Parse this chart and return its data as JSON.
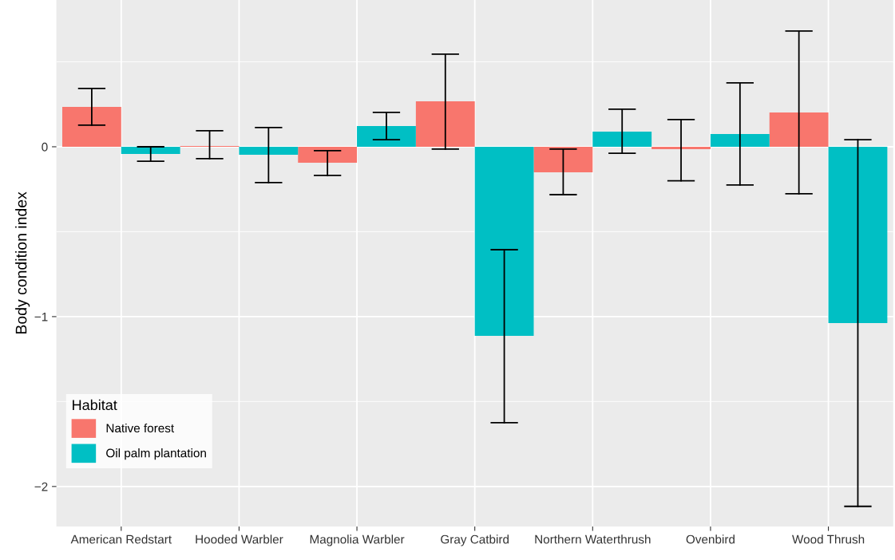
{
  "chart_data": {
    "type": "bar",
    "ylabel": "Body condition index",
    "categories": [
      "American Redstart",
      "Hooded Warbler",
      "Magnolia Warbler",
      "Gray Catbird",
      "Northern Waterthrush",
      "Ovenbird",
      "Wood Thrush"
    ],
    "series": [
      {
        "name": "Native forest",
        "color": "#f8766d",
        "values": [
          0.235,
          0.005,
          -0.094,
          0.268,
          -0.15,
          -0.014,
          0.202
        ],
        "errors": [
          [
            0.127,
            0.343
          ],
          [
            -0.07,
            0.094
          ],
          [
            -0.169,
            -0.023
          ],
          [
            -0.014,
            0.545
          ],
          [
            -0.282,
            -0.014
          ],
          [
            -0.2,
            0.16
          ],
          [
            -0.277,
            0.681
          ]
        ]
      },
      {
        "name": "Oil palm plantation",
        "color": "#00bfc4",
        "values": [
          -0.042,
          -0.047,
          0.122,
          -1.113,
          0.089,
          0.075,
          -1.038
        ],
        "errors": [
          [
            -0.085,
            0.0
          ],
          [
            -0.211,
            0.113
          ],
          [
            0.042,
            0.202
          ],
          [
            -1.624,
            -0.606
          ],
          [
            -0.038,
            0.221
          ],
          [
            -0.225,
            0.376
          ],
          [
            -2.117,
            0.042
          ]
        ]
      }
    ],
    "legend_title": "Habitat",
    "legend": "bottom left",
    "ylim": [
      -2.235,
      0.864
    ],
    "yticks": [
      {
        "value": -2,
        "label": "−2"
      },
      {
        "value": -1.5,
        "label": null
      },
      {
        "value": -1,
        "label": "−1"
      },
      {
        "value": -0.5,
        "label": null
      },
      0,
      {
        "value": 0.5,
        "label": null
      }
    ],
    "grid": true
  }
}
